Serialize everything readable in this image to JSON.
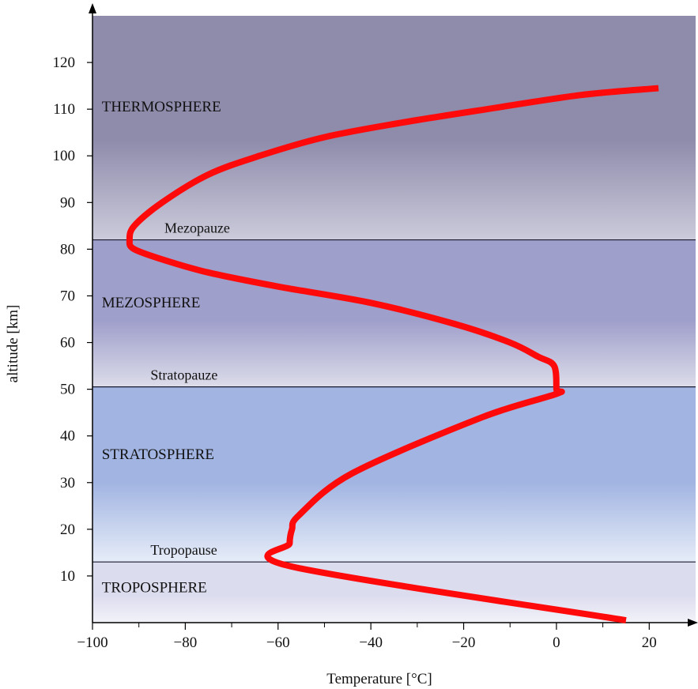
{
  "chart_data": {
    "type": "line",
    "title": "",
    "xlabel": "Temperature [°C]",
    "ylabel": "altitude [km]",
    "xlim": [
      -100,
      30
    ],
    "ylim": [
      0,
      130
    ],
    "x_ticks": [
      -100,
      -80,
      -60,
      -40,
      -20,
      0,
      20
    ],
    "x_tick_labels": [
      "−100",
      "−80",
      "−60",
      "−40",
      "−20",
      "0",
      "20"
    ],
    "y_ticks": [
      10,
      20,
      30,
      40,
      50,
      60,
      70,
      80,
      90,
      100,
      110,
      120
    ],
    "y_tick_labels": [
      "10",
      "20",
      "30",
      "40",
      "50",
      "60",
      "70",
      "80",
      "90",
      "100",
      "110",
      "120"
    ],
    "grid": false,
    "series": [
      {
        "color": "#ff0a0a",
        "points": [
          [
            15,
            0.5
          ],
          [
            -57,
            12
          ],
          [
            -57.5,
            17
          ],
          [
            -57,
            20
          ],
          [
            -55.5,
            23
          ],
          [
            -44,
            32
          ],
          [
            -16,
            44
          ],
          [
            0,
            49
          ],
          [
            0,
            50
          ],
          [
            -0.5,
            55
          ],
          [
            -4,
            57
          ],
          [
            -10,
            60
          ],
          [
            -22,
            64
          ],
          [
            -40,
            68.5
          ],
          [
            -60,
            72
          ],
          [
            -75,
            75
          ],
          [
            -84,
            77.5
          ],
          [
            -91,
            80
          ],
          [
            -92,
            82
          ],
          [
            -91,
            85
          ],
          [
            -85,
            90
          ],
          [
            -75,
            96
          ],
          [
            -64,
            100
          ],
          [
            -50,
            104
          ],
          [
            -34,
            107
          ],
          [
            -15,
            110
          ],
          [
            5,
            113
          ],
          [
            22,
            114.5
          ]
        ]
      }
    ],
    "layers": [
      {
        "label": "TROPOSPHERE",
        "x": -98,
        "y": 6.5,
        "color": "#111111"
      },
      {
        "label": "STRATOSPHERE",
        "x": -98,
        "y": 35,
        "color": "#111111"
      },
      {
        "label": "MEZOSPHERE",
        "x": -98,
        "y": 67.5,
        "color": "#2b2f66"
      },
      {
        "label": "THERMOSPHERE",
        "x": -98,
        "y": 109.5,
        "color": "#111111"
      }
    ],
    "boundaries": [
      {
        "label": "Tropopause",
        "y": 13,
        "label_x": -87.5
      },
      {
        "label": "Stratopauze",
        "y": 50.5,
        "label_x": -87.5
      },
      {
        "label": "Mezopauze",
        "y": 82,
        "label_x": -84.5
      }
    ],
    "bands": [
      {
        "from": 0,
        "to": 13,
        "top_color": "#dcdcef",
        "bottom_color": "#f2f2f9"
      },
      {
        "from": 13,
        "to": 50.5,
        "top_color": "#a2b5e2",
        "bottom_color": "#e6ecf8"
      },
      {
        "from": 50.5,
        "to": 82,
        "top_color": "#9f9fcb",
        "bottom_color": "#dcdcea"
      },
      {
        "from": 82,
        "to": 130,
        "top_color": "#8e8bab",
        "bottom_color": "#cbcbdb"
      }
    ]
  }
}
